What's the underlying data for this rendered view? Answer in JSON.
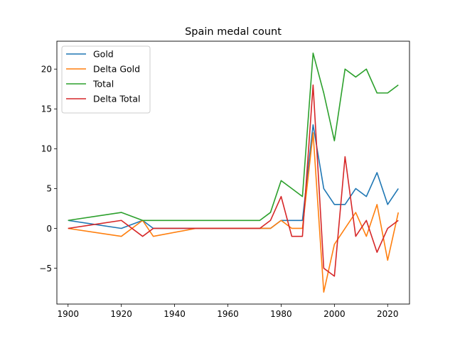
{
  "chart_data": {
    "type": "line",
    "title": "Spain medal count",
    "xlabel": "",
    "ylabel": "",
    "xlim": [
      1895.8,
      2028.2
    ],
    "ylim": [
      -9.5,
      23.5
    ],
    "xticks": [
      1900,
      1920,
      1940,
      1960,
      1980,
      2000,
      2020
    ],
    "yticks": [
      -5,
      0,
      5,
      10,
      15,
      20
    ],
    "xtick_labels": [
      "1900",
      "1920",
      "1940",
      "1960",
      "1980",
      "2000",
      "2020"
    ],
    "ytick_labels": [
      "−5",
      "0",
      "5",
      "10",
      "15",
      "20"
    ],
    "grid": false,
    "legend_position": "upper left",
    "x": [
      1900,
      1920,
      1928,
      1932,
      1948,
      1972,
      1976,
      1980,
      1984,
      1988,
      1992,
      1996,
      2000,
      2004,
      2008,
      2012,
      2016,
      2020,
      2024
    ],
    "series": [
      {
        "name": "Gold",
        "color": "#1f77b4",
        "values": [
          1,
          0,
          1,
          0,
          0,
          0,
          0,
          1,
          1,
          1,
          13,
          5,
          3,
          3,
          5,
          4,
          7,
          3,
          5
        ]
      },
      {
        "name": "Delta Gold",
        "color": "#ff7f0e",
        "values": [
          0,
          -1,
          1,
          -1,
          0,
          0,
          0,
          1,
          0,
          0,
          12,
          -8,
          -2,
          0,
          2,
          -1,
          3,
          -4,
          2
        ]
      },
      {
        "name": "Total",
        "color": "#2ca02c",
        "values": [
          1,
          2,
          1,
          1,
          1,
          1,
          2,
          6,
          5,
          4,
          22,
          17,
          11,
          20,
          19,
          20,
          17,
          17,
          18
        ]
      },
      {
        "name": "Delta Total",
        "color": "#d62728",
        "values": [
          0,
          1,
          -1,
          0,
          0,
          0,
          1,
          4,
          -1,
          -1,
          18,
          -5,
          -6,
          9,
          -1,
          1,
          -3,
          0,
          1
        ]
      }
    ]
  }
}
